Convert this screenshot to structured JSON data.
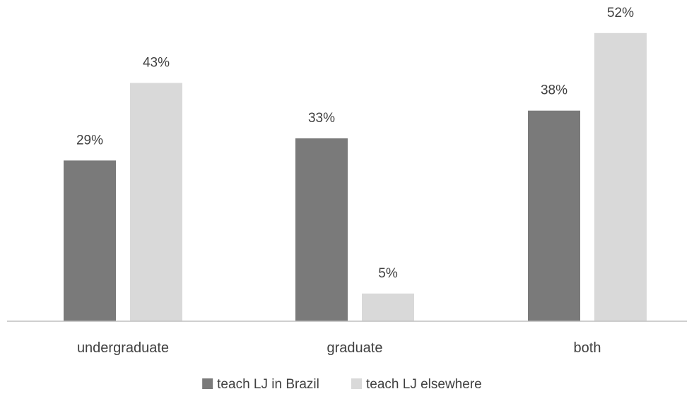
{
  "chart_data": {
    "type": "bar",
    "categories": [
      "undergraduate",
      "graduate",
      "both"
    ],
    "series": [
      {
        "name": "teach LJ in Brazil",
        "values": [
          29,
          33,
          38
        ],
        "labels": [
          "29%",
          "33%",
          "38%"
        ]
      },
      {
        "name": "teach LJ elsewhere",
        "values": [
          43,
          5,
          52
        ],
        "labels": [
          "43%",
          "5%",
          "52%"
        ]
      }
    ],
    "ylim": [
      0,
      60
    ],
    "grid": false,
    "legend_position": "bottom-center",
    "colors": [
      "#7a7a7a",
      "#d9d9d9"
    ],
    "axis_color": "#bfbfbf",
    "text_color": "#404040"
  }
}
